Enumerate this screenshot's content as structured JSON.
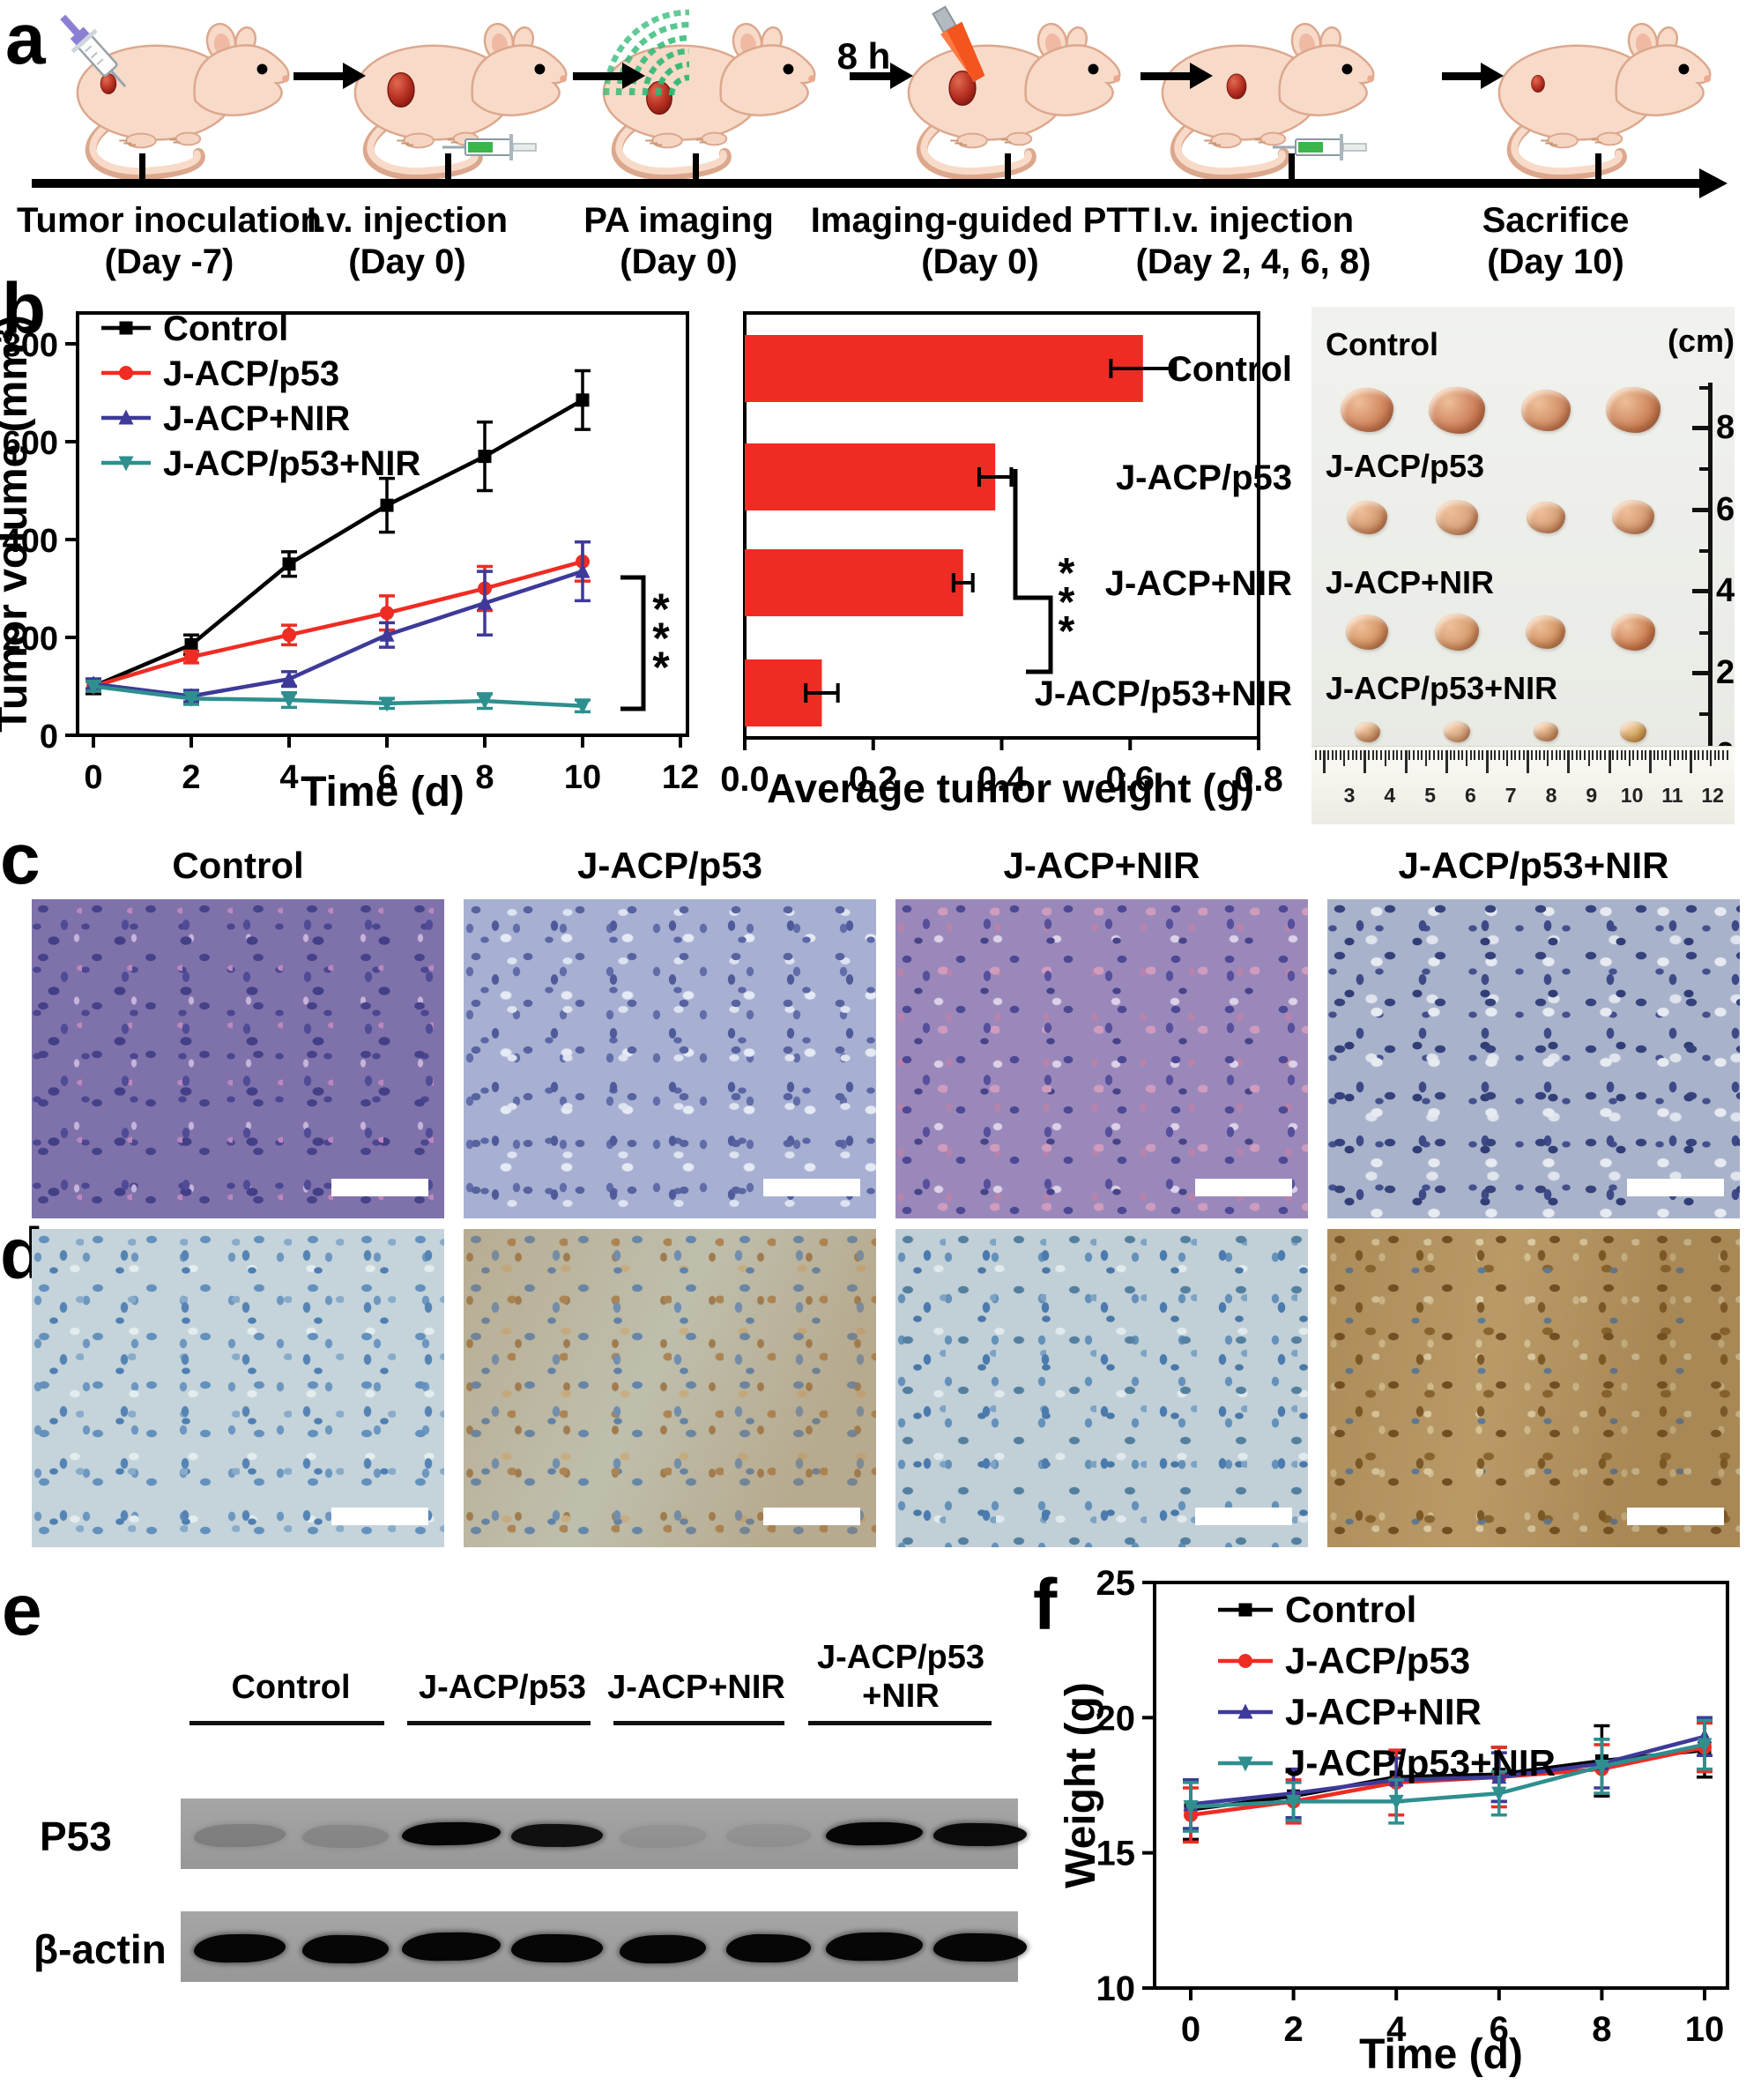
{
  "groups": [
    "Control",
    "J-ACP/p53",
    "J-ACP+NIR",
    "J-ACP/p53+NIR"
  ],
  "colors": {
    "series": [
      "#000000",
      "#ee2c23",
      "#3d3a99",
      "#2e8f8e"
    ],
    "bar_red": "#ee2c23",
    "blot_background": "#9d9d9d",
    "mouse_body": "#f8dac9",
    "tumor_red": "#b93223"
  },
  "panel_a": {
    "label": "a",
    "interval_label": "8 h",
    "steps": [
      {
        "line1": "Tumor inoculation",
        "line2": "(Day -7)"
      },
      {
        "line1": "I.v. injection",
        "line2": "(Day 0)"
      },
      {
        "line1": "PA imaging",
        "line2": "(Day 0)"
      },
      {
        "line1": "Imaging-guided PTT",
        "line2": "(Day 0)"
      },
      {
        "line1": "I.v. injection",
        "line2": "(Day 2, 4, 6, 8)"
      },
      {
        "line1": "Sacrifice",
        "line2": "(Day 10)"
      }
    ]
  },
  "panel_b": {
    "label": "b"
  },
  "panel_c": {
    "label": "c",
    "columns": [
      "Control",
      "J-ACP/p53",
      "J-ACP+NIR",
      "J-ACP/p53+NIR"
    ]
  },
  "panel_d": {
    "label": "d"
  },
  "panel_e": {
    "label": "e",
    "groups": [
      {
        "name": "Control"
      },
      {
        "name": "J-ACP/p53"
      },
      {
        "name": "J-ACP+NIR"
      },
      {
        "name": "J-ACP/p53",
        "name2": "+NIR"
      }
    ],
    "rows": [
      {
        "name": "P53",
        "band_opacities": [
          0.2,
          0.15,
          1,
          0.93,
          0.08,
          0.08,
          1,
          0.97
        ]
      },
      {
        "name": "β-actin",
        "band_opacities": [
          1,
          1,
          1,
          1,
          1,
          1,
          1,
          1
        ]
      }
    ]
  },
  "panel_f": {
    "label": "f"
  },
  "tumor_photo": {
    "unit_label": "(cm)",
    "rows": [
      {
        "label": "Control",
        "tumor_w": 60,
        "tumor_h": 50,
        "colors": [
          "#cd8058",
          "#c97a55",
          "#cf8a62",
          "#c97f55"
        ]
      },
      {
        "label": "J-ACP/p53",
        "tumor_w": 46,
        "tumor_h": 38,
        "colors": [
          "#d2976e",
          "#d6a07a",
          "#d59d74",
          "#d2976e"
        ]
      },
      {
        "label": "J-ACP+NIR",
        "tumor_w": 48,
        "tumor_h": 40,
        "colors": [
          "#d2925f",
          "#d59a6c",
          "#d0905f",
          "#cb7d50"
        ]
      },
      {
        "label": "J-ACP/p53+NIR",
        "tumor_w": 29,
        "tumor_h": 23,
        "colors": [
          "#d3a173",
          "#d8b28a",
          "#d0a173",
          "#d4ae58"
        ]
      }
    ],
    "vertical_ruler_labels": [
      "8",
      "6",
      "4",
      "2",
      "0"
    ],
    "horizontal_ruler_numbers": [
      "3",
      "4",
      "5",
      "6",
      "7",
      "8",
      "9",
      "10",
      "11",
      "12"
    ]
  },
  "chart_data": [
    {
      "id": "tumor_volume",
      "type": "line",
      "title": "",
      "xlabel": "Time (d)",
      "ylabel": "Tumor volume (mm³)",
      "x": [
        0,
        2,
        4,
        6,
        8,
        10
      ],
      "xticks": [
        0,
        2,
        4,
        6,
        8,
        10,
        12
      ],
      "xtick_labels": [
        "0",
        "2",
        "4",
        "6",
        "8",
        "10",
        "12"
      ],
      "yticks": [
        0,
        200,
        400,
        600,
        800
      ],
      "ytick_labels": [
        "0",
        "200",
        "400",
        "600",
        "800"
      ],
      "xlim": [
        -0.8,
        12.4
      ],
      "ylim": [
        0,
        860
      ],
      "grid": false,
      "legend_position": "top-left",
      "annotation": "***",
      "series_colors": [
        "#000000",
        "#ee2c23",
        "#3d3a99",
        "#2e8f8e"
      ],
      "series": [
        {
          "name": "Control",
          "marker": "square",
          "values": [
            100,
            185,
            350,
            470,
            570,
            685
          ],
          "errors": [
            15,
            20,
            25,
            55,
            70,
            60
          ]
        },
        {
          "name": "J-ACP/p53",
          "marker": "circle",
          "values": [
            100,
            160,
            205,
            250,
            300,
            355
          ],
          "errors": [
            10,
            12,
            20,
            35,
            45,
            40
          ]
        },
        {
          "name": "J-ACP+NIR",
          "marker": "triangle-up",
          "values": [
            105,
            80,
            115,
            205,
            270,
            335
          ],
          "errors": [
            10,
            12,
            15,
            25,
            65,
            60
          ]
        },
        {
          "name": "J-ACP/p53+NIR",
          "marker": "triangle-down",
          "values": [
            100,
            75,
            72,
            65,
            70,
            60
          ],
          "errors": [
            10,
            12,
            15,
            10,
            15,
            12
          ]
        }
      ]
    },
    {
      "id": "average_tumor_weight",
      "type": "bar",
      "orientation": "horizontal",
      "xlabel": "Average tumor weight (g)",
      "categories": [
        "Control",
        "J-ACP/p53",
        "J-ACP+NIR",
        "J-ACP/p53+NIR"
      ],
      "values": [
        0.62,
        0.39,
        0.34,
        0.12
      ],
      "errors": [
        0.05,
        0.025,
        0.015,
        0.025
      ],
      "xticks": [
        0,
        0.2,
        0.4,
        0.6,
        0.8
      ],
      "xtick_labels": [
        "0.0",
        "0.2",
        "0.4",
        "0.6",
        "0.8"
      ],
      "xlim": [
        0,
        0.88
      ],
      "bar_color": "#ee2c23",
      "annotation": "***"
    },
    {
      "id": "body_weight",
      "type": "line",
      "xlabel": "Time (d)",
      "ylabel": "Weight (g)",
      "x": [
        0,
        2,
        4,
        6,
        8,
        10
      ],
      "xticks": [
        0,
        2,
        4,
        6,
        8,
        10
      ],
      "xtick_labels": [
        "0",
        "2",
        "4",
        "6",
        "8",
        "10"
      ],
      "yticks": [
        10,
        15,
        20,
        25
      ],
      "ytick_labels": [
        "10",
        "15",
        "20",
        "25"
      ],
      "xlim": [
        -1,
        11
      ],
      "ylim": [
        10,
        25
      ],
      "grid": false,
      "legend_position": "top-left",
      "series_colors": [
        "#000000",
        "#ee2c23",
        "#3d3a99",
        "#2e8f8e"
      ],
      "series": [
        {
          "name": "Control",
          "marker": "square",
          "values": [
            16.6,
            17.1,
            17.8,
            17.9,
            18.4,
            18.8
          ],
          "errors": [
            1.1,
            0.9,
            0.9,
            1.0,
            1.3,
            1.0
          ]
        },
        {
          "name": "J-ACP/p53",
          "marker": "circle",
          "values": [
            16.4,
            16.9,
            17.6,
            17.8,
            18.1,
            18.9
          ],
          "errors": [
            1.0,
            0.8,
            1.2,
            1.1,
            0.9,
            0.9
          ]
        },
        {
          "name": "J-ACP+NIR",
          "marker": "triangle-up",
          "values": [
            16.8,
            17.2,
            17.7,
            17.8,
            18.3,
            19.3
          ],
          "errors": [
            0.9,
            0.9,
            0.8,
            0.9,
            0.9,
            0.7
          ]
        },
        {
          "name": "J-ACP/p53+NIR",
          "marker": "triangle-down",
          "values": [
            16.7,
            16.9,
            16.9,
            17.2,
            18.2,
            19.0
          ],
          "errors": [
            0.9,
            0.7,
            0.8,
            0.8,
            1.0,
            0.9
          ]
        }
      ]
    }
  ]
}
